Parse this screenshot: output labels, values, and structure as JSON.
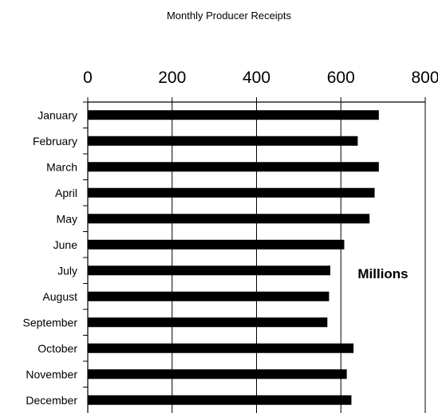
{
  "chart_data": {
    "type": "bar",
    "orientation": "horizontal",
    "title": "Monthly Producer Receipts",
    "xlabel": "",
    "ylabel": "",
    "annotation": "Millions",
    "categories": [
      "January",
      "February",
      "March",
      "April",
      "May",
      "June",
      "July",
      "August",
      "September",
      "October",
      "November",
      "December"
    ],
    "values": [
      690,
      640,
      690,
      680,
      668,
      608,
      575,
      572,
      568,
      630,
      614,
      625
    ],
    "xlim": [
      0,
      800
    ],
    "xticks": [
      "0",
      "200",
      "400",
      "600",
      "800"
    ],
    "xaxis_position": "top",
    "grid": "vertical",
    "bar_color": "#000000"
  }
}
